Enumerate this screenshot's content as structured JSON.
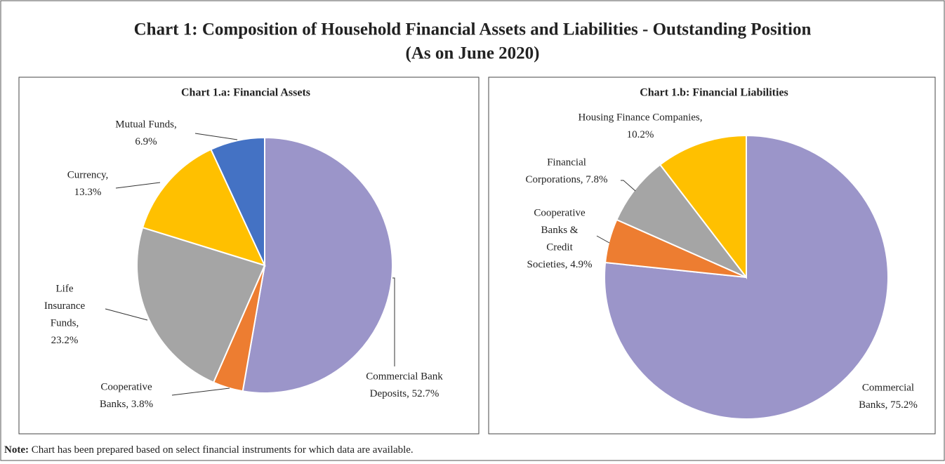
{
  "title": [
    "Chart 1: Composition of Household Financial Assets and Liabilities - Outstanding Position",
    "(As on June 2020)"
  ],
  "note": {
    "label": "Note:",
    "text": "Chart has been prepared based on select financial instruments for which data are available."
  },
  "chart_data": [
    {
      "type": "pie",
      "title": "Chart 1.a: Financial Assets",
      "values": [
        52.7,
        3.8,
        23.2,
        13.3,
        6.9
      ],
      "value_labels": [
        [
          "Commercial Bank",
          "Deposits, 52.7%"
        ],
        [
          "Cooperative",
          "Banks, 3.8%"
        ],
        [
          "Life",
          "Insurance",
          "Funds,",
          "23.2%"
        ],
        [
          "Currency,",
          "13.3%"
        ],
        [
          "Mutual Funds,",
          "6.9%"
        ]
      ],
      "colors": [
        "#9b95c9",
        "#ed7d31",
        "#a5a5a5",
        "#ffc000",
        "#4472c4"
      ]
    },
    {
      "type": "pie",
      "title": "Chart 1.b: Financial Liabilities",
      "values": [
        75.2,
        4.9,
        7.8,
        10.2
      ],
      "value_labels": [
        [
          "Commercial",
          "Banks, 75.2%"
        ],
        [
          "Cooperative",
          "Banks &",
          "Credit",
          "Societies, 4.9%"
        ],
        [
          "Financial",
          "Corporations, 7.8%"
        ],
        [
          "Housing Finance Companies,",
          "10.2%"
        ]
      ],
      "colors": [
        "#9b95c9",
        "#ed7d31",
        "#a5a5a5",
        "#ffc000"
      ]
    }
  ]
}
